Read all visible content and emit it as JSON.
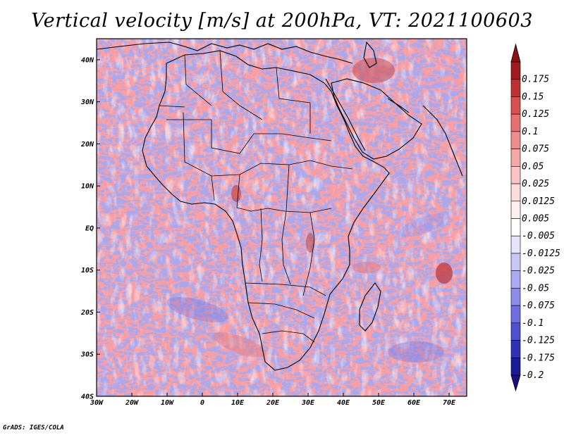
{
  "title": "Vertical velocity [m/s] at 200hPa, VT: 2021100603",
  "footer": "GrADS: IGES/COLA",
  "map": {
    "lon_range": [
      -30,
      75
    ],
    "lat_range": [
      -40,
      45
    ],
    "lon_ticks": [
      {
        "value": -30,
        "label": "30W"
      },
      {
        "value": -20,
        "label": "20W"
      },
      {
        "value": -10,
        "label": "10W"
      },
      {
        "value": 0,
        "label": "0"
      },
      {
        "value": 10,
        "label": "10E"
      },
      {
        "value": 20,
        "label": "20E"
      },
      {
        "value": 30,
        "label": "30E"
      },
      {
        "value": 40,
        "label": "40E"
      },
      {
        "value": 50,
        "label": "50E"
      },
      {
        "value": 60,
        "label": "60E"
      },
      {
        "value": 70,
        "label": "70E"
      }
    ],
    "lat_ticks": [
      {
        "value": 40,
        "label": "40N"
      },
      {
        "value": 30,
        "label": "30N"
      },
      {
        "value": 20,
        "label": "20N"
      },
      {
        "value": 10,
        "label": "10N"
      },
      {
        "value": 0,
        "label": "EQ"
      },
      {
        "value": -10,
        "label": "10S"
      },
      {
        "value": -20,
        "label": "20S"
      },
      {
        "value": -30,
        "label": "30S"
      },
      {
        "value": -40,
        "label": "40S"
      }
    ]
  },
  "colorbar": {
    "levels": [
      {
        "label": "0.175",
        "color": "#a01820"
      },
      {
        "label": "0.15",
        "color": "#c03030"
      },
      {
        "label": "0.125",
        "color": "#d85050"
      },
      {
        "label": "0.1",
        "color": "#e87070"
      },
      {
        "label": "0.075",
        "color": "#f08c8c"
      },
      {
        "label": "0.05",
        "color": "#f5a8a8"
      },
      {
        "label": "0.025",
        "color": "#fac4c4"
      },
      {
        "label": "0.0125",
        "color": "#fddcdc"
      },
      {
        "label": "0.005",
        "color": "#fff0f0"
      },
      {
        "label": "-0.005",
        "color": "#ffffff"
      },
      {
        "label": "-0.0125",
        "color": "#e4e4fc"
      },
      {
        "label": "-0.025",
        "color": "#c8c8f8"
      },
      {
        "label": "-0.05",
        "color": "#aaaaf2"
      },
      {
        "label": "-0.075",
        "color": "#8c8cea"
      },
      {
        "label": "-0.1",
        "color": "#6e6ee0"
      },
      {
        "label": "-0.125",
        "color": "#5050d0"
      },
      {
        "label": "-0.175",
        "color": "#3030b8"
      },
      {
        "label": "-0.2",
        "color": "#1a1a98"
      }
    ],
    "top_color": "#901010",
    "bottom_color": "#1a1080"
  }
}
